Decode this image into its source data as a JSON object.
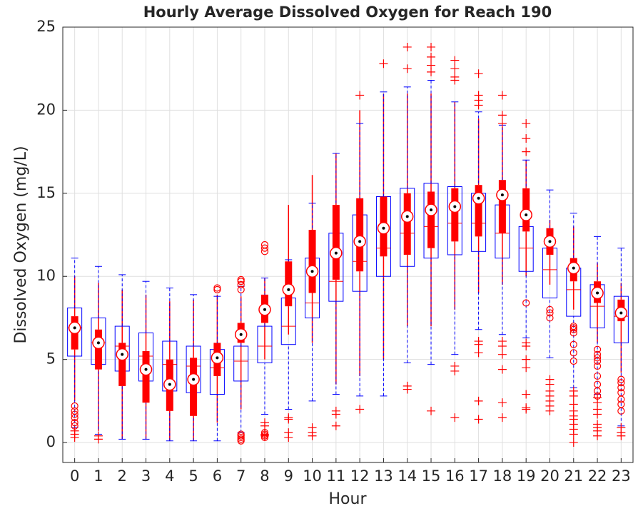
{
  "chart_data": {
    "type": "box",
    "title": "Hourly Average Dissolved Oxygen for Reach 190",
    "x_label": "Hour",
    "y_label": "Dissolved Oxygen (mg/L)",
    "categories": [
      "0",
      "1",
      "2",
      "3",
      "4",
      "5",
      "6",
      "7",
      "8",
      "9",
      "10",
      "11",
      "12",
      "13",
      "14",
      "15",
      "16",
      "17",
      "18",
      "19",
      "20",
      "21",
      "22",
      "23"
    ],
    "ylim": [
      -1.2,
      25
    ],
    "yticks": [
      0,
      5,
      10,
      15,
      20,
      25
    ],
    "grid": true,
    "series": [
      {
        "color": "#0000ff",
        "outlier_color": "#ff0000",
        "q1": [
          5.2,
          4.7,
          4.3,
          3.7,
          3.1,
          3.0,
          2.9,
          3.7,
          4.8,
          5.9,
          7.5,
          8.5,
          9.1,
          10.0,
          10.6,
          11.1,
          11.3,
          11.5,
          11.1,
          10.3,
          8.7,
          7.6,
          6.9,
          6.0
        ],
        "median": [
          6.9,
          6.0,
          5.8,
          5.2,
          4.7,
          4.6,
          4.5,
          4.9,
          5.8,
          7.0,
          8.4,
          9.7,
          10.9,
          11.7,
          12.6,
          13.0,
          13.2,
          13.2,
          12.6,
          11.7,
          10.4,
          9.2,
          8.2,
          7.6
        ],
        "q3": [
          8.1,
          7.5,
          7.0,
          6.6,
          6.1,
          5.8,
          5.6,
          5.8,
          7.0,
          8.7,
          11.1,
          12.6,
          13.7,
          14.8,
          15.3,
          15.6,
          15.4,
          15.0,
          14.3,
          13.0,
          11.7,
          10.5,
          9.5,
          8.8
        ],
        "whisker_low": [
          0.9,
          0.5,
          0.2,
          0.2,
          0.1,
          0.1,
          0.1,
          0.6,
          1.7,
          2.0,
          2.5,
          2.9,
          2.8,
          2.8,
          4.8,
          4.7,
          5.3,
          6.8,
          6.5,
          6.3,
          5.1,
          3.3,
          2.9,
          1.0
        ],
        "whisker_high": [
          11.1,
          10.6,
          10.1,
          9.7,
          9.3,
          8.9,
          8.8,
          9.4,
          9.9,
          11.0,
          14.4,
          17.4,
          19.2,
          21.1,
          21.4,
          21.8,
          20.5,
          19.9,
          19.1,
          17.0,
          15.2,
          13.8,
          12.4,
          11.7
        ],
        "outliers": [
          [
            0.3,
            0.5,
            0.7
          ],
          [
            0.2,
            0.4
          ],
          [],
          [],
          [],
          [],
          [],
          [],
          [
            0.4,
            0.5,
            1.0,
            1.2
          ],
          [
            0.3,
            0.6,
            1.4,
            1.5
          ],
          [
            0.4,
            0.6,
            0.9
          ],
          [
            1.0,
            1.7,
            1.9
          ],
          [
            2.0,
            20.9
          ],
          [
            22.8
          ],
          [
            3.2,
            3.4,
            22.5,
            23.8
          ],
          [
            1.9,
            22.3,
            22.7,
            23.2,
            23.8
          ],
          [
            1.5,
            4.3,
            4.6,
            21.8,
            22.0,
            22.5,
            23.0
          ],
          [
            1.4,
            2.5,
            5.4,
            5.9,
            6.1,
            20.3,
            20.6,
            20.9,
            22.2
          ],
          [
            1.5,
            2.4,
            4.4,
            5.3,
            5.8,
            6.1,
            19.2,
            19.7,
            20.9
          ],
          [
            2.0,
            2.1,
            2.9,
            4.5,
            5.0,
            5.8,
            6.0,
            17.5,
            18.3,
            19.2
          ],
          [
            1.9,
            2.2,
            2.5,
            2.8,
            3.1,
            3.5,
            3.8
          ],
          [
            0.0,
            0.5,
            0.8,
            1.1,
            1.4,
            1.6,
            1.9,
            2.3,
            2.8,
            3.1
          ],
          [
            0.4,
            0.7,
            0.9,
            1.1,
            1.7,
            2.0,
            2.4,
            2.7
          ],
          [
            0.4,
            0.6,
            0.9
          ]
        ]
      },
      {
        "color": "#ff0000",
        "outlier_color": "#ff0000",
        "q1": [
          5.6,
          4.4,
          3.4,
          2.4,
          1.9,
          1.6,
          4.0,
          6.0,
          7.2,
          8.2,
          9.0,
          9.8,
          10.3,
          11.2,
          11.3,
          11.7,
          12.1,
          12.4,
          12.6,
          12.7,
          11.3,
          9.7,
          8.4,
          7.3
        ],
        "median": [
          6.9,
          6.0,
          5.3,
          4.4,
          3.5,
          3.8,
          5.1,
          6.5,
          8.0,
          9.2,
          10.3,
          11.4,
          12.1,
          12.9,
          13.6,
          14.0,
          14.2,
          14.7,
          14.9,
          13.7,
          12.1,
          10.5,
          9.0,
          7.8
        ],
        "q3": [
          7.6,
          6.8,
          6.0,
          5.5,
          5.0,
          5.1,
          6.0,
          7.2,
          8.9,
          10.9,
          12.8,
          14.3,
          14.7,
          14.8,
          15.0,
          15.1,
          15.3,
          15.5,
          15.8,
          15.3,
          12.9,
          11.1,
          9.7,
          8.6
        ],
        "whisker_low": [
          2.5,
          0.7,
          0.2,
          0.2,
          0.1,
          0.1,
          1.2,
          2.0,
          5.0,
          6.5,
          6.0,
          3.5,
          4.0,
          5.0,
          7.0,
          7.0,
          8.0,
          9.0,
          9.5,
          10.0,
          9.5,
          8.0,
          6.0,
          4.2
        ],
        "whisker_high": [
          10.0,
          9.6,
          9.2,
          8.9,
          8.5,
          8.6,
          8.9,
          8.8,
          9.9,
          14.3,
          16.1,
          17.4,
          20.0,
          21.0,
          21.0,
          21.0,
          20.5,
          19.5,
          19.0,
          17.0,
          13.4,
          13.0,
          10.8,
          9.6
        ],
        "outliers": [
          [
            1.0,
            1.2,
            1.5,
            1.7,
            1.9,
            2.2
          ],
          [],
          [],
          [],
          [],
          [],
          [
            9.2,
            9.3
          ],
          [
            0.1,
            0.2,
            0.3,
            0.4,
            0.5,
            9.2,
            9.5,
            9.7,
            9.8
          ],
          [
            0.3,
            0.4,
            0.5,
            0.6,
            11.5,
            11.7,
            11.9
          ],
          [],
          [],
          [],
          [],
          [],
          [],
          [],
          [],
          [],
          [],
          [
            8.4
          ],
          [
            7.5,
            7.8,
            8.0
          ],
          [
            4.9,
            5.4,
            5.9,
            6.6,
            6.8,
            6.9,
            7.0
          ],
          [
            2.8,
            3.1,
            3.5,
            4.0,
            4.6,
            4.9,
            5.1,
            5.3,
            5.6
          ],
          [
            1.9,
            2.3,
            2.6,
            3.0,
            3.3,
            3.6,
            3.8
          ]
        ]
      }
    ]
  }
}
